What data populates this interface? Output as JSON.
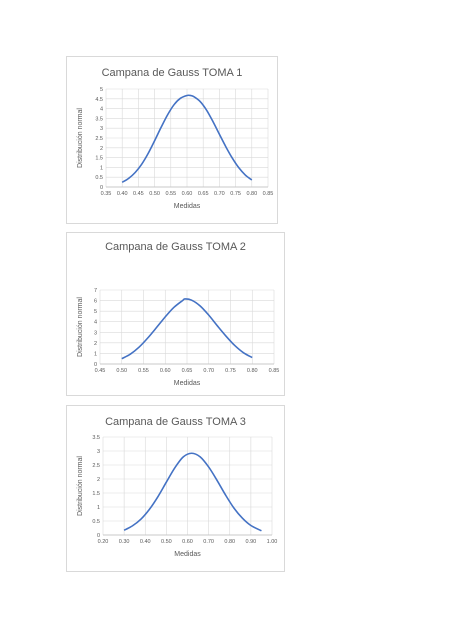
{
  "colors": {
    "curve": "#4472c4"
  },
  "chart_data": [
    {
      "type": "line",
      "title": "Campana de Gauss TOMA 1",
      "xlabel": "Medidas",
      "ylabel": "Distribución normal",
      "xlim": [
        0.35,
        0.85
      ],
      "ylim": [
        0,
        5
      ],
      "x_ticks": [
        "0.35",
        "0.40",
        "0.45",
        "0.50",
        "0.55",
        "0.60",
        "0.65",
        "0.70",
        "0.75",
        "0.80",
        "0.85"
      ],
      "y_ticks": [
        "0",
        "0.5",
        "1",
        "1.5",
        "2",
        "2.5",
        "3",
        "3.5",
        "4",
        "4.5",
        "5"
      ],
      "grid": true,
      "series": [
        {
          "x": [
            0.4,
            0.42,
            0.44,
            0.46,
            0.48,
            0.5,
            0.52,
            0.54,
            0.56,
            0.58,
            0.6,
            0.61,
            0.62,
            0.64,
            0.66,
            0.68,
            0.7,
            0.72,
            0.74,
            0.76,
            0.78,
            0.8
          ],
          "y": [
            0.24,
            0.44,
            0.74,
            1.16,
            1.71,
            2.36,
            3.04,
            3.68,
            4.2,
            4.53,
            4.67,
            4.67,
            4.62,
            4.37,
            3.93,
            3.34,
            2.69,
            2.05,
            1.47,
            0.98,
            0.61,
            0.36
          ]
        }
      ]
    },
    {
      "type": "line",
      "title": "Campana de Gauss TOMA 2",
      "xlabel": "Medidas",
      "ylabel": "Distribución normal",
      "xlim": [
        0.45,
        0.85
      ],
      "ylim": [
        0,
        7
      ],
      "x_ticks": [
        "0.45",
        "0.50",
        "0.55",
        "0.60",
        "0.65",
        "0.70",
        "0.75",
        "0.80",
        "0.85"
      ],
      "y_ticks": [
        "0",
        "1",
        "2",
        "3",
        "4",
        "5",
        "6",
        "7"
      ],
      "grid": true,
      "series": [
        {
          "x": [
            0.5,
            0.52,
            0.54,
            0.56,
            0.58,
            0.6,
            0.62,
            0.64,
            0.645,
            0.66,
            0.68,
            0.7,
            0.72,
            0.74,
            0.76,
            0.78,
            0.8
          ],
          "y": [
            0.5,
            0.94,
            1.6,
            2.47,
            3.45,
            4.46,
            5.36,
            6.01,
            6.15,
            6.05,
            5.5,
            4.62,
            3.6,
            2.62,
            1.74,
            1.06,
            0.61
          ]
        }
      ]
    },
    {
      "type": "line",
      "title": "Campana de Gauss TOMA 3",
      "xlabel": "Medidas",
      "ylabel": "Distribución normal",
      "xlim": [
        0.2,
        1.0
      ],
      "ylim": [
        0,
        3.5
      ],
      "x_ticks": [
        "0.20",
        "0.30",
        "0.40",
        "0.50",
        "0.60",
        "0.70",
        "0.80",
        "0.90",
        "1.00"
      ],
      "y_ticks": [
        "0",
        "0.5",
        "1",
        "1.5",
        "2",
        "2.5",
        "3",
        "3.5"
      ],
      "grid": true,
      "series": [
        {
          "x": [
            0.3,
            0.34,
            0.38,
            0.42,
            0.46,
            0.5,
            0.54,
            0.58,
            0.62,
            0.66,
            0.7,
            0.74,
            0.78,
            0.82,
            0.86,
            0.9,
            0.95
          ],
          "y": [
            0.17,
            0.33,
            0.57,
            0.92,
            1.37,
            1.89,
            2.4,
            2.79,
            2.92,
            2.79,
            2.43,
            1.95,
            1.43,
            0.96,
            0.6,
            0.34,
            0.15
          ]
        }
      ]
    }
  ]
}
